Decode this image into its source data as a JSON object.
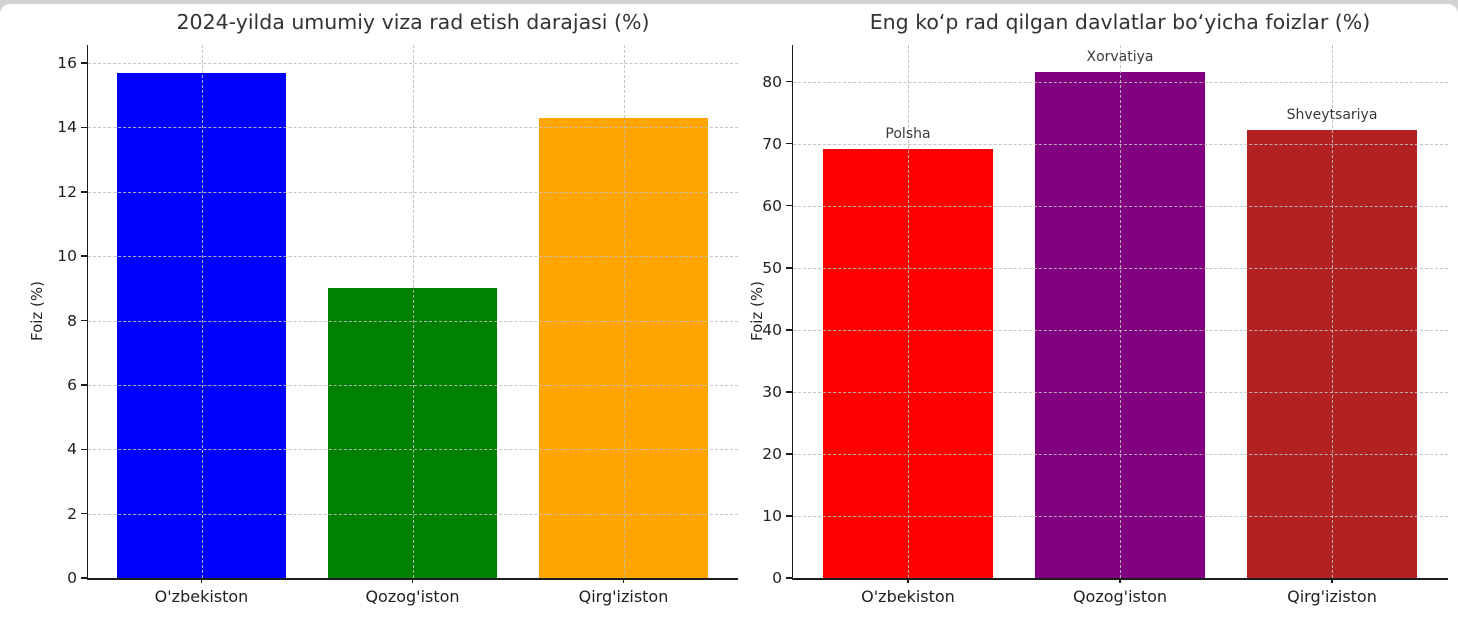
{
  "figure": {
    "background": "#ffffff",
    "top_edge_color": "#d2d2d2",
    "axis_color": "#1c1c1c",
    "grid_color": "#bebebe",
    "text_color": "#262626"
  },
  "chart_data": [
    {
      "type": "bar",
      "title": "2024-yilda umumiy viza rad etish darajasi (%)",
      "xlabel": "",
      "ylabel": "Foiz (%)",
      "categories": [
        "O'zbekiston",
        "Qozog'iston",
        "Qirg'iziston"
      ],
      "values": [
        15.7,
        9.0,
        14.3
      ],
      "bar_colors": [
        "#0000ff",
        "#008000",
        "#ffa500"
      ],
      "bar_labels": [
        "",
        "",
        ""
      ],
      "ylim": [
        0,
        16.56
      ],
      "yticks": [
        0,
        2,
        4,
        6,
        8,
        10,
        12,
        14,
        16
      ],
      "grid": "dashed horizontal and vertical",
      "legend": "none"
    },
    {
      "type": "bar",
      "title": "Eng ko‘p rad qilgan davlatlar bo‘yicha foizlar (%)",
      "xlabel": "",
      "ylabel": "Foiz (%)",
      "categories": [
        "O'zbekiston",
        "Qozog'iston",
        "Qirg'iziston"
      ],
      "values": [
        69.2,
        81.5,
        72.2
      ],
      "bar_colors": [
        "#ff0000",
        "#800080",
        "#b22222"
      ],
      "bar_labels": [
        "Polsha",
        "Xorvatiya",
        "Shveytsariya"
      ],
      "ylim": [
        0,
        85.9
      ],
      "yticks": [
        0,
        10,
        20,
        30,
        40,
        50,
        60,
        70,
        80
      ],
      "grid": "dashed horizontal and vertical",
      "legend": "none"
    }
  ]
}
